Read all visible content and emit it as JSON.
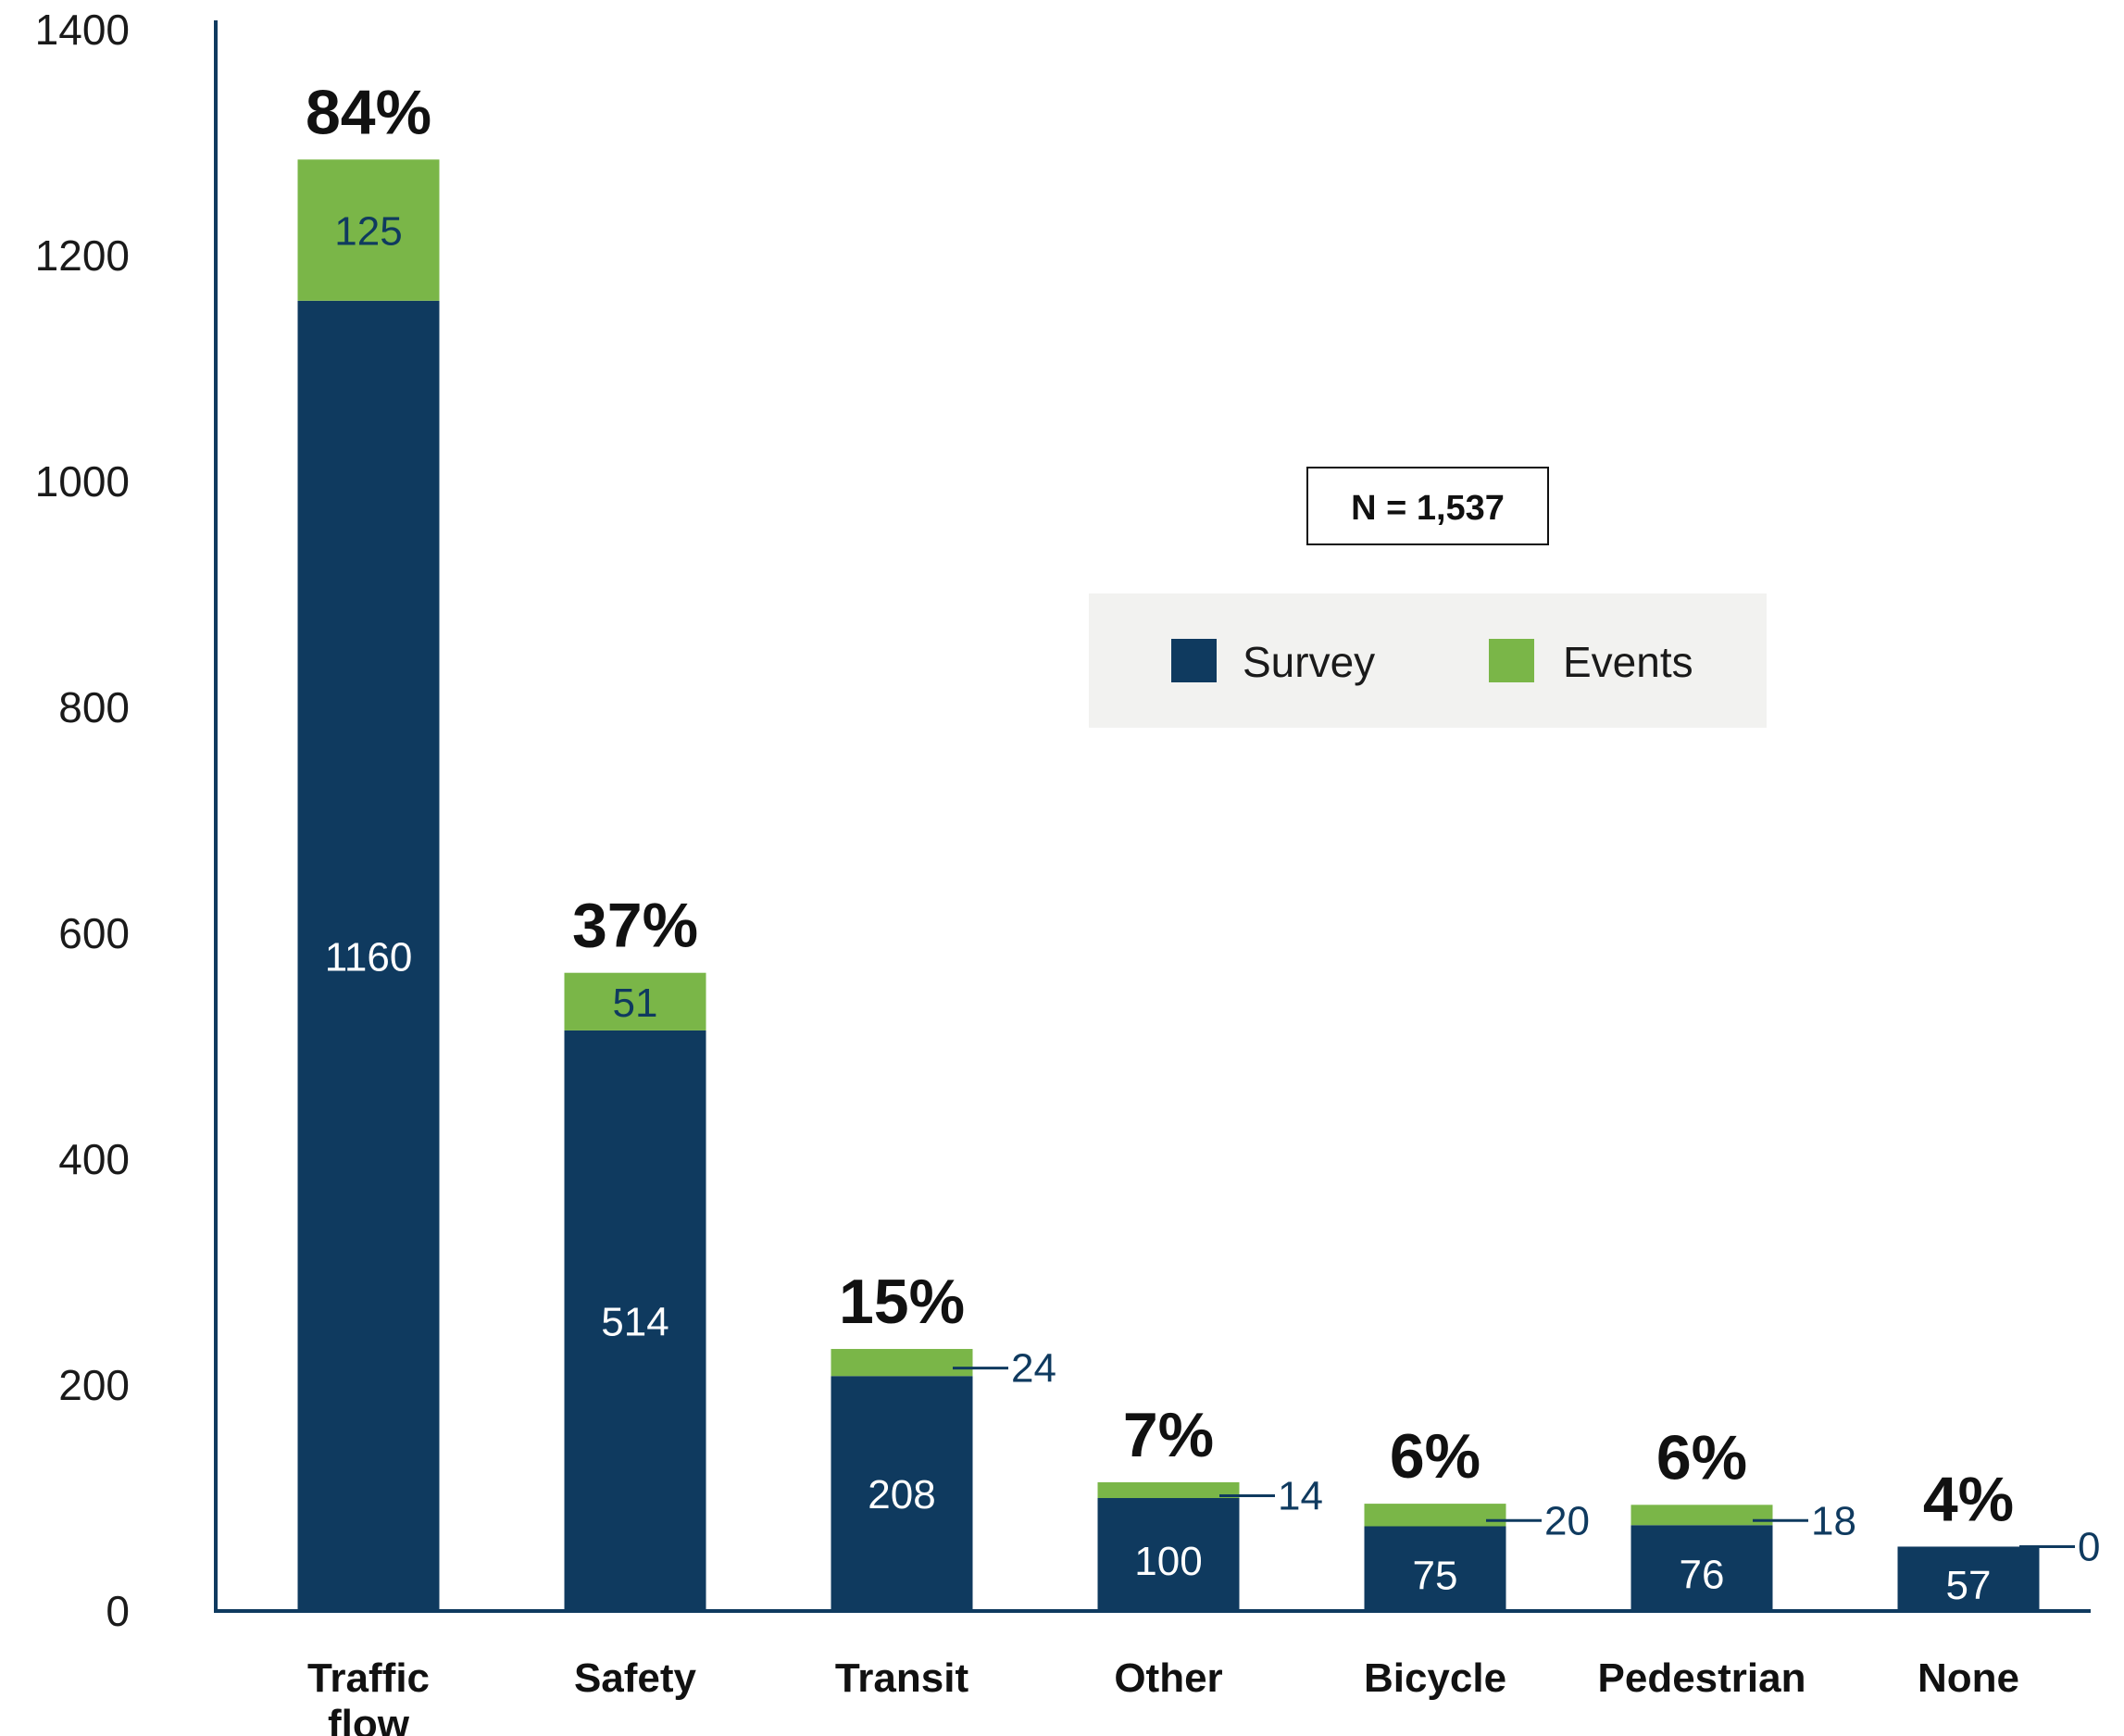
{
  "chart_data": {
    "type": "bar",
    "stacked": true,
    "categories": [
      [
        "Traffic",
        "flow"
      ],
      [
        "Safety"
      ],
      [
        "Transit"
      ],
      [
        "Other"
      ],
      [
        "Bicycle"
      ],
      [
        "Pedestrian"
      ],
      [
        "None"
      ]
    ],
    "series": [
      {
        "name": "Survey",
        "color": "#0f3a5f",
        "values": [
          1160,
          514,
          208,
          100,
          75,
          76,
          57
        ]
      },
      {
        "name": "Events",
        "color": "#7ab648",
        "values": [
          125,
          51,
          24,
          14,
          20,
          18,
          0
        ]
      }
    ],
    "percent_labels": [
      "84%",
      "37%",
      "15%",
      "7%",
      "6%",
      "6%",
      "4%"
    ],
    "yticks": [
      "0",
      "200",
      "400",
      "600",
      "800",
      "1000",
      "1200",
      "1400"
    ],
    "ylim": [
      0,
      1400
    ],
    "annotation": "N = 1,537",
    "legend_position": "center-right",
    "grid": false,
    "axis_color": "#0f3a5f",
    "legend_bg_color": "#f2f2f0"
  }
}
